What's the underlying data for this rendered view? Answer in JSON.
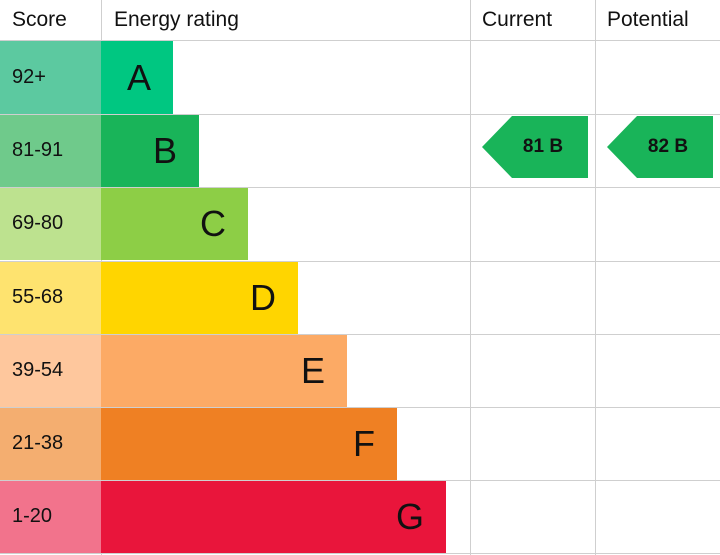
{
  "header": {
    "score": "Score",
    "rating": "Energy rating",
    "current": "Current",
    "potential": "Potential"
  },
  "bands": [
    {
      "score": "92+",
      "letter": "A",
      "score_color": "#5cc9a0",
      "color": "#00c781"
    },
    {
      "score": "81-91",
      "letter": "B",
      "score_color": "#6fca8b",
      "color": "#19b459"
    },
    {
      "score": "69-80",
      "letter": "C",
      "score_color": "#bde28f",
      "color": "#8dce46"
    },
    {
      "score": "55-68",
      "letter": "D",
      "score_color": "#fee36f",
      "color": "#ffd500"
    },
    {
      "score": "39-54",
      "letter": "E",
      "score_color": "#fec79d",
      "color": "#fcaa65"
    },
    {
      "score": "21-38",
      "letter": "F",
      "score_color": "#f4ae70",
      "color": "#ef8023"
    },
    {
      "score": "1-20",
      "letter": "G",
      "score_color": "#f2738c",
      "color": "#e9153b"
    }
  ],
  "current": {
    "label": "81 B"
  },
  "potential": {
    "label": "82 B"
  }
}
